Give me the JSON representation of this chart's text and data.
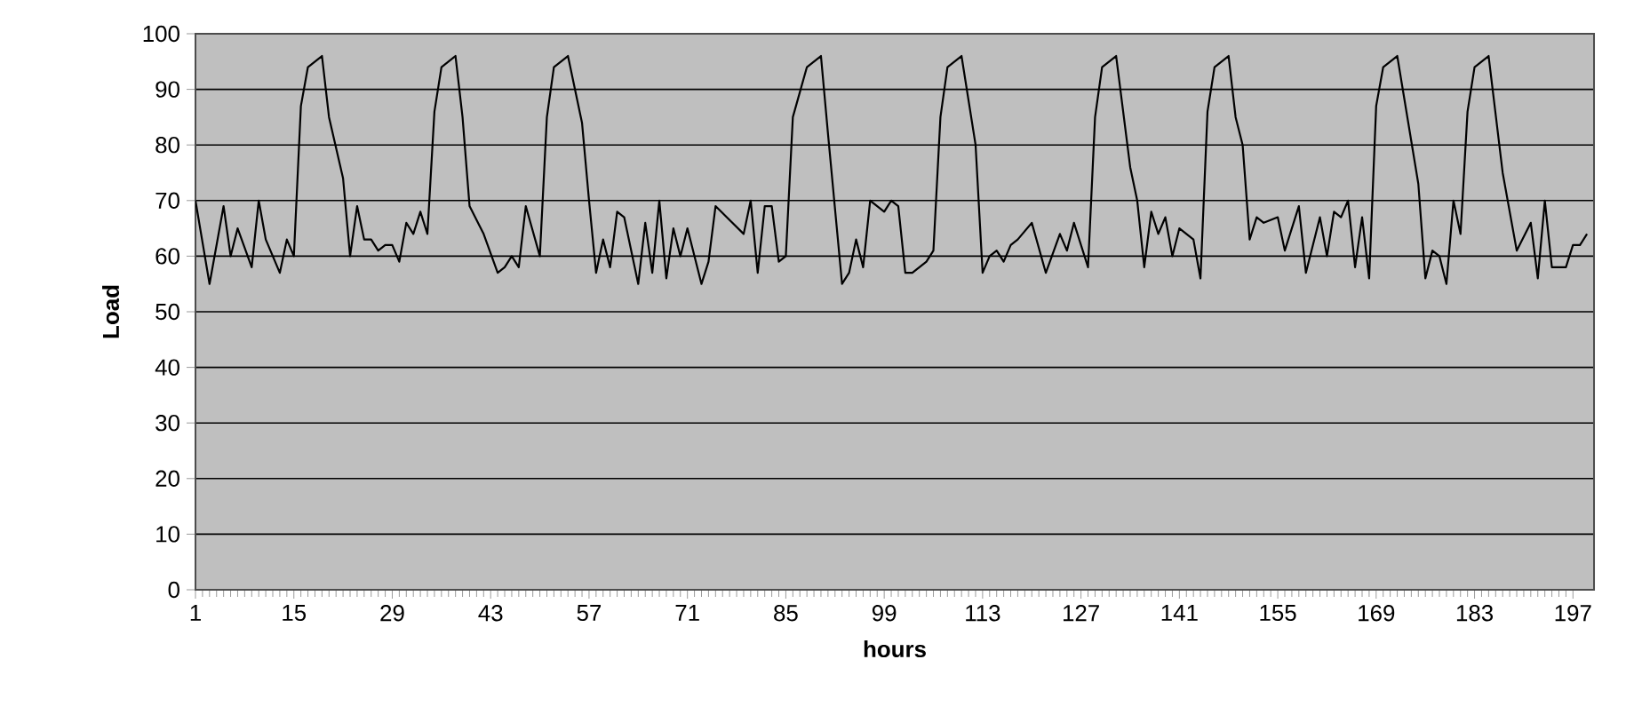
{
  "chart_data": {
    "type": "line",
    "xlabel": "hours",
    "ylabel": "Load",
    "x": [
      1,
      3,
      5,
      6,
      7,
      9,
      10,
      11,
      13,
      14,
      15,
      16,
      17,
      19,
      20,
      22,
      23,
      24,
      25,
      26,
      27,
      28,
      29,
      30,
      31,
      32,
      33,
      34,
      35,
      36,
      38,
      39,
      40,
      42,
      44,
      45,
      46,
      47,
      48,
      50,
      51,
      52,
      54,
      56,
      57,
      58,
      59,
      60,
      61,
      62,
      64,
      65,
      66,
      67,
      68,
      69,
      70,
      71,
      73,
      74,
      75,
      79,
      80,
      81,
      82,
      83,
      84,
      85,
      86,
      88,
      90,
      91,
      93,
      94,
      95,
      96,
      97,
      98,
      99,
      100,
      101,
      102,
      103,
      105,
      106,
      107,
      108,
      110,
      112,
      113,
      114,
      115,
      116,
      117,
      118,
      120,
      122,
      124,
      125,
      126,
      128,
      129,
      130,
      132,
      134,
      135,
      136,
      137,
      138,
      139,
      140,
      141,
      143,
      144,
      145,
      146,
      148,
      149,
      150,
      151,
      152,
      153,
      155,
      156,
      158,
      159,
      161,
      162,
      163,
      164,
      165,
      166,
      167,
      168,
      169,
      170,
      172,
      175,
      176,
      177,
      178,
      179,
      180,
      181,
      182,
      183,
      185,
      187,
      189,
      191,
      192,
      193,
      194,
      196,
      197,
      198,
      199
    ],
    "series": [
      {
        "color": "#000000",
        "values": [
          70,
          55,
          69,
          60,
          65,
          58,
          70,
          63,
          57,
          63,
          60,
          87,
          94,
          96,
          85,
          74,
          60,
          69,
          63,
          63,
          61,
          62,
          62,
          59,
          66,
          64,
          68,
          64,
          86,
          94,
          96,
          85,
          69,
          64,
          57,
          58,
          60,
          58,
          69,
          60,
          85,
          94,
          96,
          84,
          70,
          57,
          63,
          58,
          68,
          67,
          55,
          66,
          57,
          70,
          56,
          65,
          60,
          65,
          55,
          59,
          69,
          64,
          70,
          57,
          69,
          69,
          59,
          60,
          85,
          94,
          96,
          82,
          55,
          57,
          63,
          58,
          70,
          69,
          68,
          70,
          69,
          57,
          57,
          59,
          61,
          85,
          94,
          96,
          80,
          57,
          60,
          61,
          59,
          62,
          63,
          66,
          57,
          64,
          61,
          66,
          58,
          85,
          94,
          96,
          76,
          70,
          58,
          68,
          64,
          67,
          60,
          65,
          63,
          56,
          86,
          94,
          96,
          85,
          80,
          63,
          67,
          66,
          67,
          61,
          69,
          57,
          67,
          60,
          68,
          67,
          70,
          58,
          67,
          56,
          87,
          94,
          96,
          73,
          56,
          61,
          60,
          55,
          70,
          64,
          86,
          94,
          96,
          75,
          61,
          66,
          56,
          70,
          58,
          58,
          62,
          62,
          64
        ]
      }
    ],
    "xlim": [
      1,
      200
    ],
    "ylim": [
      0,
      100
    ],
    "xticks": [
      1,
      15,
      29,
      43,
      57,
      71,
      85,
      99,
      113,
      127,
      141,
      155,
      169,
      183,
      197
    ],
    "yticks": [
      0,
      10,
      20,
      30,
      40,
      50,
      60,
      70,
      80,
      90,
      100
    ],
    "grid": "y",
    "marker": "none",
    "line_style": "solid"
  }
}
